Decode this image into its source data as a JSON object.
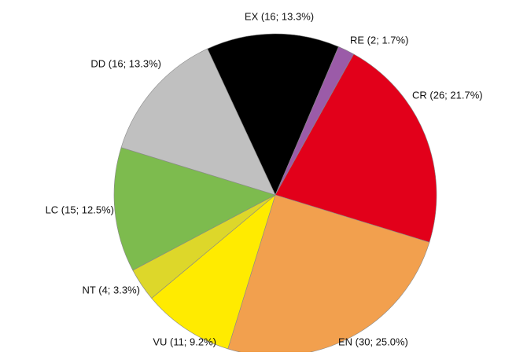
{
  "chart_data": {
    "type": "pie",
    "categories": [
      "EX (16; 13.3%)",
      "RE (2; 1.7%)",
      "CR (26; 21.7%)",
      "EN (30; 25.0%)",
      "VU (11; 9.2%)",
      "NT (4; 3.3%)",
      "LC (15; 12.5%)",
      "DD (16; 13.3%)"
    ],
    "values": [
      16,
      2,
      26,
      30,
      11,
      4,
      15,
      16
    ],
    "colors": [
      "#000000",
      "#9b5ba8",
      "#e2001a",
      "#f2a04e",
      "#ffeb00",
      "#ddd72a",
      "#7dbb4e",
      "#c0c0c0"
    ]
  }
}
